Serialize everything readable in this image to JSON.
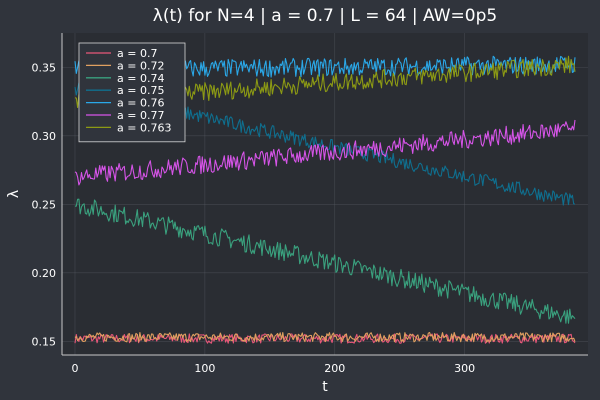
{
  "chart_data": {
    "type": "line",
    "title": "λ(t) for N=4 | a = 0.7 | L = 64 | AW=0p5",
    "xlabel": "t",
    "ylabel": "λ",
    "xlim": [
      -10,
      395
    ],
    "ylim": [
      0.14,
      0.375
    ],
    "xticks": [
      0,
      100,
      200,
      300
    ],
    "yticks": [
      0.15,
      0.2,
      0.25,
      0.3,
      0.35
    ],
    "ytick_labels": [
      "0.15",
      "0.20",
      "0.25",
      "0.30",
      "0.35"
    ],
    "grid": true,
    "legend_position": "top-left",
    "x_range": [
      0,
      385
    ],
    "num_points": 386,
    "series": [
      {
        "name": "a = 0.7",
        "color": "#e8577a",
        "start": 0.152,
        "end": 0.152,
        "noise": 0.002
      },
      {
        "name": "a = 0.72",
        "color": "#e0a060",
        "start": 0.153,
        "end": 0.153,
        "noise": 0.002
      },
      {
        "name": "a = 0.74",
        "color": "#3aa17e",
        "start": 0.25,
        "end": 0.167,
        "noise": 0.004
      },
      {
        "name": "a = 0.75",
        "color": "#0f6f8f",
        "start": 0.335,
        "end": 0.252,
        "noise": 0.003
      },
      {
        "name": "a = 0.76",
        "color": "#2aa8e8",
        "start": 0.348,
        "end": 0.352,
        "noise": 0.004
      },
      {
        "name": "a = 0.77",
        "color": "#d654e8",
        "start": 0.27,
        "end": 0.305,
        "noise": 0.004
      },
      {
        "name": "a = 0.763",
        "color": "#8c9a14",
        "start": 0.325,
        "end": 0.352,
        "noise": 0.004
      }
    ]
  }
}
